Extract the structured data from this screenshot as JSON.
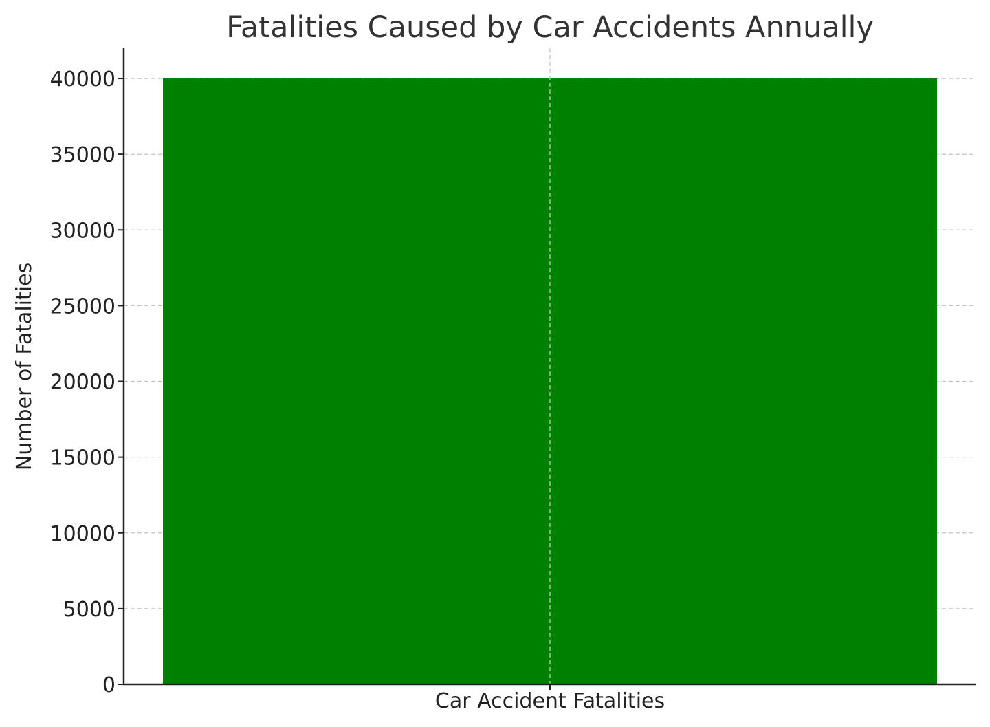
{
  "chart_data": {
    "type": "bar",
    "title": "Fatalities Caused by Car Accidents Annually",
    "xlabel": "",
    "ylabel": "Number of Fatalities",
    "categories": [
      "Car Accident Fatalities"
    ],
    "values": [
      40000
    ],
    "ylim": [
      0,
      42000
    ],
    "yticks": [
      0,
      5000,
      10000,
      15000,
      20000,
      25000,
      30000,
      35000,
      40000
    ],
    "grid": true,
    "bar_color": "#008000"
  }
}
